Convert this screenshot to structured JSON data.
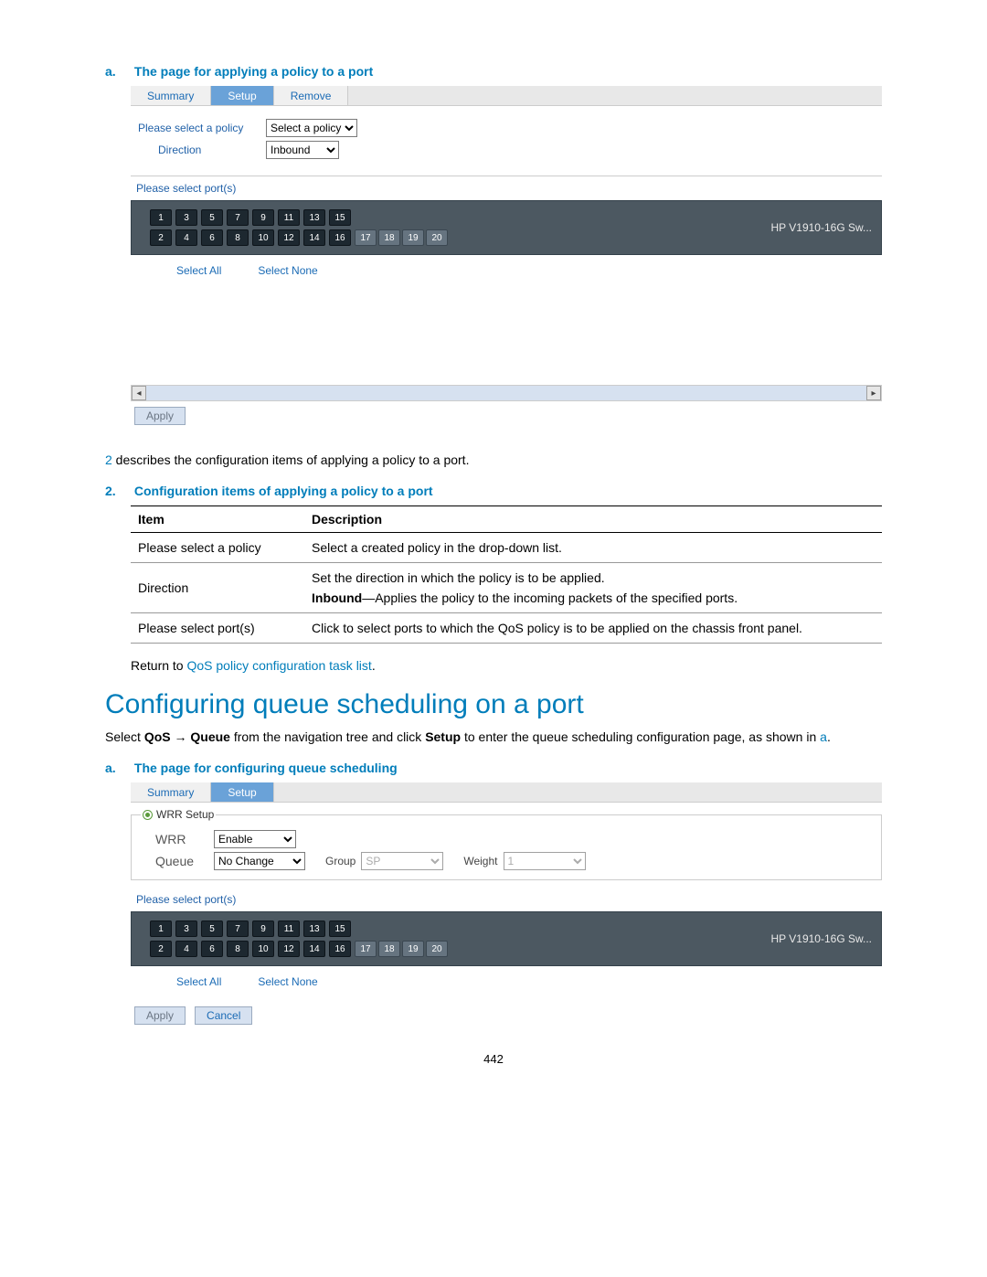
{
  "figA": {
    "caption_marker": "a.",
    "caption_text": "The page for applying a policy to a port",
    "tabs": {
      "summary": "Summary",
      "setup": "Setup",
      "remove": "Remove"
    },
    "policy_label": "Please select a policy",
    "policy_value": "Select a policy",
    "direction_label": "Direction",
    "direction_value": "Inbound",
    "ports_label": "Please select port(s)",
    "chassis_name": "HP V1910-16G Sw...",
    "select_all": "Select All",
    "select_none": "Select None",
    "apply": "Apply"
  },
  "descLine": {
    "ref": "2",
    "text": " describes the configuration items of applying a policy to a port."
  },
  "tbl": {
    "caption_marker": "2.",
    "caption_text": "Configuration items of applying a policy to a port",
    "col1": "Item",
    "col2": "Description",
    "r1c1": "Please select a policy",
    "r1c2": "Select a created policy in the drop-down list.",
    "r2c1": "Direction",
    "r2c2a": "Set the direction in which the policy is to be applied.",
    "r2c2b_bold": "Inbound",
    "r2c2b_rest": "—Applies the policy to the incoming packets of the specified ports.",
    "r3c1": "Please select port(s)",
    "r3c2": "Click to select ports to which the QoS policy is to be applied on the chassis front panel."
  },
  "returnTo": {
    "prefix": "Return to ",
    "link": "QoS policy configuration task list",
    "suffix": "."
  },
  "heading": "Configuring queue scheduling on a port",
  "navLine": {
    "t1": "Select ",
    "b1": "QoS",
    "arrow": " → ",
    "b2": "Queue",
    "t2": " from the navigation tree and click ",
    "b3": "Setup",
    "t3": " to enter the queue scheduling configuration page, as shown in ",
    "link": "a",
    "t4": "."
  },
  "figQ": {
    "caption_marker": "a.",
    "caption_text": "The page for configuring queue scheduling",
    "tabs": {
      "summary": "Summary",
      "setup": "Setup"
    },
    "legend": "WRR Setup",
    "wrr_label": "WRR",
    "wrr_value": "Enable",
    "queue_label": "Queue",
    "queue_value": "No Change",
    "group_label": "Group",
    "group_value": "SP",
    "weight_label": "Weight",
    "weight_value": "1",
    "ports_label": "Please select port(s)",
    "chassis_name": "HP V1910-16G Sw...",
    "select_all": "Select All",
    "select_none": "Select None",
    "apply": "Apply",
    "cancel": "Cancel"
  },
  "ports": {
    "top": [
      "1",
      "3",
      "5",
      "7",
      "9",
      "11",
      "13",
      "15"
    ],
    "bottom": [
      "2",
      "4",
      "6",
      "8",
      "10",
      "12",
      "14",
      "16"
    ],
    "extra": [
      "17",
      "18",
      "19",
      "20"
    ]
  },
  "pageNum": "442"
}
